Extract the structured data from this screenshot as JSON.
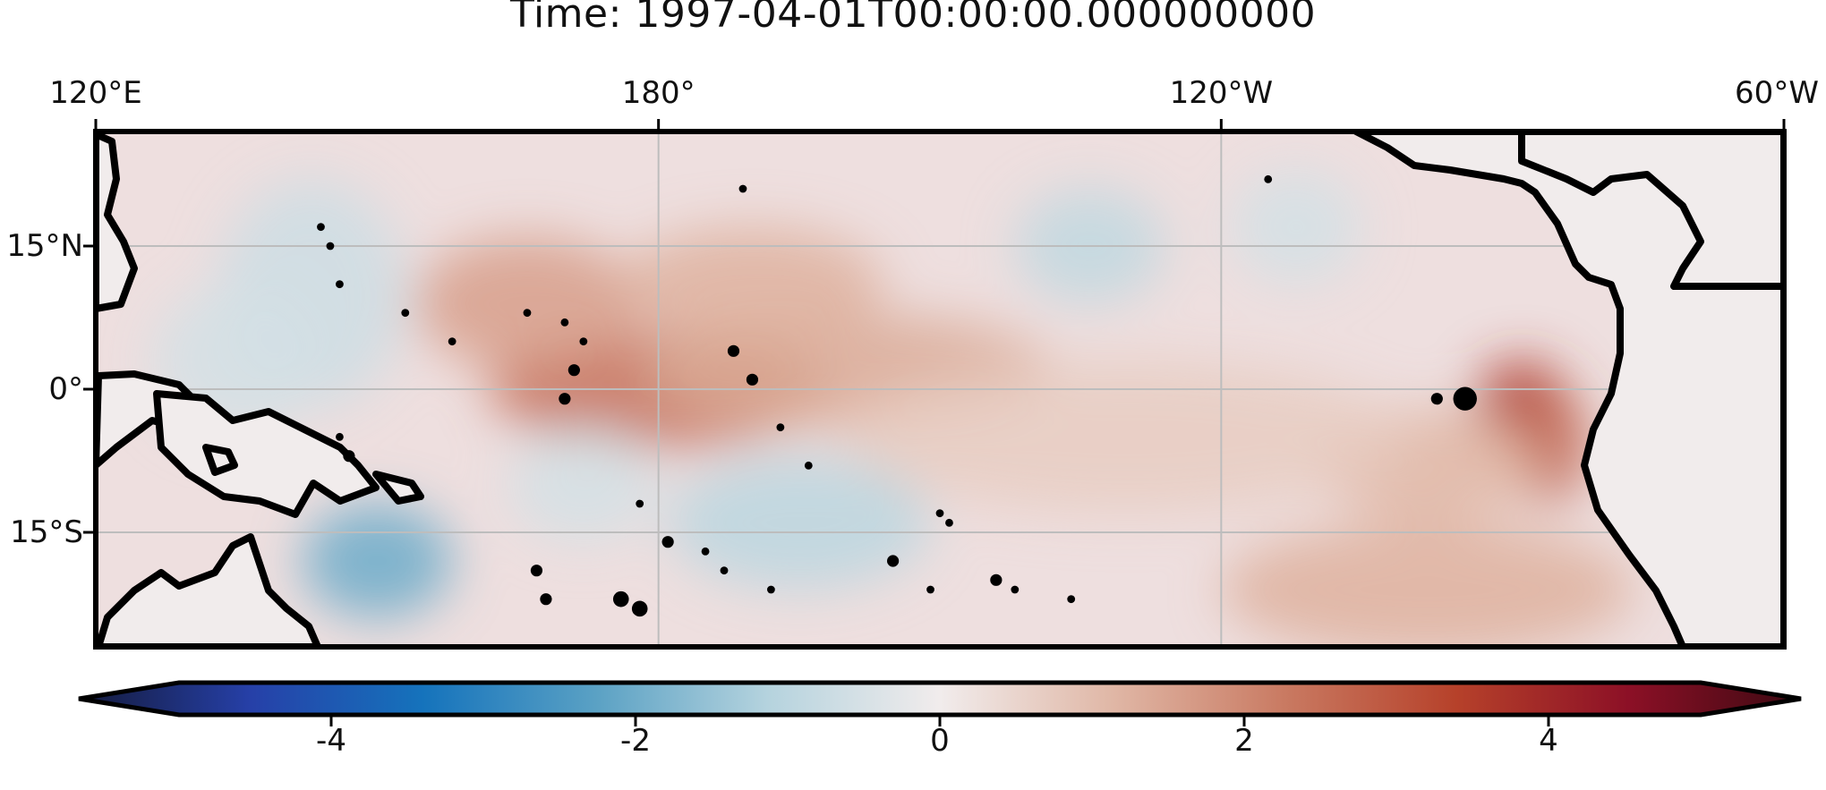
{
  "title": "Time:  1997-04-01T00:00:00.000000000",
  "map": {
    "projection": "PlateCarree",
    "lon_range": [
      120,
      300
    ],
    "lat_range": [
      -27,
      27
    ],
    "lon_ticks": [
      {
        "value": 120,
        "label": "120°E"
      },
      {
        "value": 180,
        "label": "180°"
      },
      {
        "value": 240,
        "label": "120°W"
      },
      {
        "value": 300,
        "label": "60°W"
      }
    ],
    "lat_ticks": [
      {
        "value": 15,
        "label": "15°N"
      },
      {
        "value": 0,
        "label": "0°"
      },
      {
        "value": -15,
        "label": "15°S"
      }
    ],
    "gridlines": true,
    "coastlines": true,
    "land_color": "#f1ecec",
    "ocean_features": [
      {
        "lon": 180,
        "lat": 0,
        "value": 2.2,
        "rx": 18,
        "ry": 6
      },
      {
        "lon": 166,
        "lat": 9,
        "value": 1.4,
        "rx": 12,
        "ry": 7
      },
      {
        "lon": 200,
        "lat": 2,
        "value": 1.2,
        "rx": 22,
        "ry": 6
      },
      {
        "lon": 190,
        "lat": 11,
        "value": 1.1,
        "rx": 14,
        "ry": 6
      },
      {
        "lon": 272,
        "lat": -2,
        "value": 3.2,
        "rx": 5,
        "ry": 5
      },
      {
        "lon": 275,
        "lat": -6,
        "value": 2.4,
        "rx": 4,
        "ry": 6
      },
      {
        "lon": 262,
        "lat": -8,
        "value": 1.0,
        "rx": 12,
        "ry": 6
      },
      {
        "lon": 262,
        "lat": -21,
        "value": 1.1,
        "rx": 22,
        "ry": 7
      },
      {
        "lon": 230,
        "lat": -5,
        "value": 0.6,
        "rx": 30,
        "ry": 8
      },
      {
        "lon": 150,
        "lat": -18,
        "value": -1.8,
        "rx": 8,
        "ry": 6
      },
      {
        "lon": 143,
        "lat": 10,
        "value": -0.6,
        "rx": 10,
        "ry": 12
      },
      {
        "lon": 135,
        "lat": 3,
        "value": -0.5,
        "rx": 9,
        "ry": 8
      },
      {
        "lon": 226,
        "lat": 15,
        "value": -0.8,
        "rx": 8,
        "ry": 6
      },
      {
        "lon": 195,
        "lat": -14,
        "value": -0.9,
        "rx": 14,
        "ry": 7
      },
      {
        "lon": 248,
        "lat": 17,
        "value": -0.5,
        "rx": 7,
        "ry": 6
      },
      {
        "lon": 172,
        "lat": -10,
        "value": -0.5,
        "rx": 8,
        "ry": 6
      }
    ]
  },
  "colorbar": {
    "cmap": "balance",
    "vmin": -5,
    "vmax": 5,
    "extend": "both",
    "ticks": [
      -4,
      -2,
      0,
      2,
      4
    ],
    "tick_labels": [
      "-4",
      "-2",
      "0",
      "2",
      "4"
    ],
    "stops": [
      "#141a3b",
      "#2640a8",
      "#1573bc",
      "#5aa1c4",
      "#b5d3de",
      "#f1ecec",
      "#e0b7a6",
      "#c97a62",
      "#b6412a",
      "#8c1026",
      "#3c0912"
    ]
  }
}
